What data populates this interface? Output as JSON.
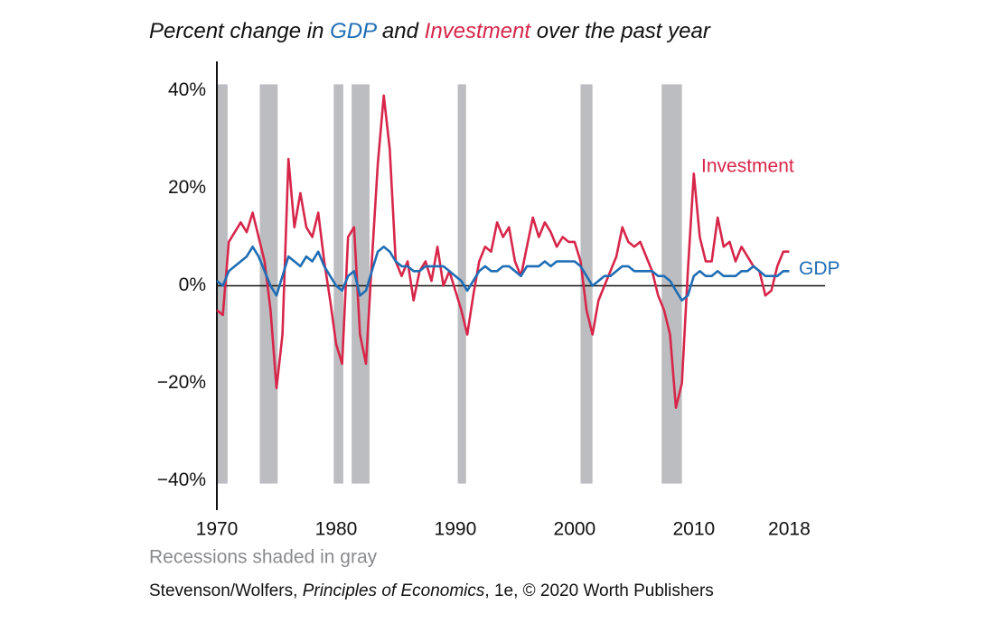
{
  "chart_data": {
    "type": "line",
    "title": "Percent change in GDP and Investment over the past year",
    "note": "Recessions shaded in gray",
    "source": [
      "Stevenson/Wolfers, ",
      "Principles of Economics",
      ", 1e, © 2020 Worth Publishers"
    ],
    "x": [
      1970,
      1970.5,
      1971,
      1971.5,
      1972,
      1972.5,
      1973,
      1973.5,
      1974,
      1974.5,
      1975,
      1975.5,
      1976,
      1976.5,
      1977,
      1977.5,
      1978,
      1978.5,
      1979,
      1979.5,
      1980,
      1980.5,
      1981,
      1981.5,
      1982,
      1982.5,
      1983,
      1983.5,
      1984,
      1984.5,
      1985,
      1985.5,
      1986,
      1986.5,
      1987,
      1987.5,
      1988,
      1988.5,
      1989,
      1989.5,
      1990,
      1990.5,
      1991,
      1991.5,
      1992,
      1992.5,
      1993,
      1993.5,
      1994,
      1994.5,
      1995,
      1995.5,
      1996,
      1996.5,
      1997,
      1997.5,
      1998,
      1998.5,
      1999,
      1999.5,
      2000,
      2000.5,
      2001,
      2001.5,
      2002,
      2002.5,
      2003,
      2003.5,
      2004,
      2004.5,
      2005,
      2005.5,
      2006,
      2006.5,
      2007,
      2007.5,
      2008,
      2008.5,
      2009,
      2009.5,
      2010,
      2010.5,
      2011,
      2011.5,
      2012,
      2012.5,
      2013,
      2013.5,
      2014,
      2014.5,
      2015,
      2015.5,
      2016,
      2016.5,
      2017,
      2017.5,
      2018
    ],
    "series": [
      {
        "name": "Investment",
        "color": "#d7264a",
        "values": [
          -5,
          -6,
          9,
          11,
          13,
          11,
          15,
          10,
          5,
          -5,
          -21,
          -10,
          26,
          12,
          19,
          12,
          10,
          15,
          5,
          -3,
          -12,
          -16,
          10,
          12,
          -10,
          -16,
          5,
          25,
          39,
          28,
          5,
          2,
          5,
          -3,
          3,
          5,
          1,
          8,
          0,
          3,
          -1,
          -5,
          -10,
          -2,
          5,
          8,
          7,
          13,
          10,
          12,
          5,
          2,
          8,
          14,
          10,
          13,
          11,
          8,
          10,
          9,
          9,
          5,
          -5,
          -10,
          -3,
          0,
          3,
          6,
          12,
          9,
          8,
          9,
          6,
          3,
          -2,
          -5,
          -10,
          -25,
          -20,
          3,
          23,
          10,
          5,
          5,
          14,
          8,
          9,
          5,
          8,
          6,
          4,
          3,
          -2,
          -1,
          4,
          7,
          7
        ]
      },
      {
        "name": "GDP",
        "color": "#1f6db5",
        "values": [
          1,
          0,
          3,
          4,
          5,
          6,
          8,
          6,
          3,
          0,
          -2,
          2,
          6,
          5,
          4,
          6,
          5,
          7,
          4,
          2,
          0,
          -1,
          2,
          3,
          -2,
          -1,
          3,
          7,
          8,
          7,
          5,
          4,
          4,
          3,
          3,
          4,
          4,
          4,
          4,
          3,
          2,
          1,
          -1,
          1,
          3,
          4,
          3,
          3,
          4,
          4,
          3,
          2,
          4,
          4,
          4,
          5,
          4,
          5,
          5,
          5,
          5,
          4,
          2,
          0,
          1,
          2,
          2,
          3,
          4,
          4,
          3,
          3,
          3,
          3,
          2,
          2,
          1,
          -1,
          -3,
          -2,
          2,
          3,
          2,
          2,
          3,
          2,
          2,
          2,
          3,
          3,
          4,
          3,
          2,
          2,
          2,
          3,
          3
        ]
      }
    ],
    "recessions": [
      [
        1970,
        1970.9
      ],
      [
        1973.6,
        1975.1
      ],
      [
        1979.8,
        1980.6
      ],
      [
        1981.3,
        1982.8
      ],
      [
        1990.2,
        1990.9
      ],
      [
        2000.5,
        2001.5
      ],
      [
        2007.3,
        2009.0
      ]
    ],
    "recession_color": "#bcbdc0",
    "xlim": [
      1970,
      2021
    ],
    "xticks": [
      1970,
      1980,
      1990,
      2000,
      2010,
      2018
    ],
    "ylim": [
      -46,
      46
    ],
    "yticks": [
      {
        "value": -40,
        "label": "−40%"
      },
      {
        "value": -20,
        "label": "−20%"
      },
      {
        "value": 0,
        "label": "0%"
      },
      {
        "value": 20,
        "label": "20%"
      },
      {
        "value": 40,
        "label": "40%"
      }
    ],
    "grid": false
  }
}
